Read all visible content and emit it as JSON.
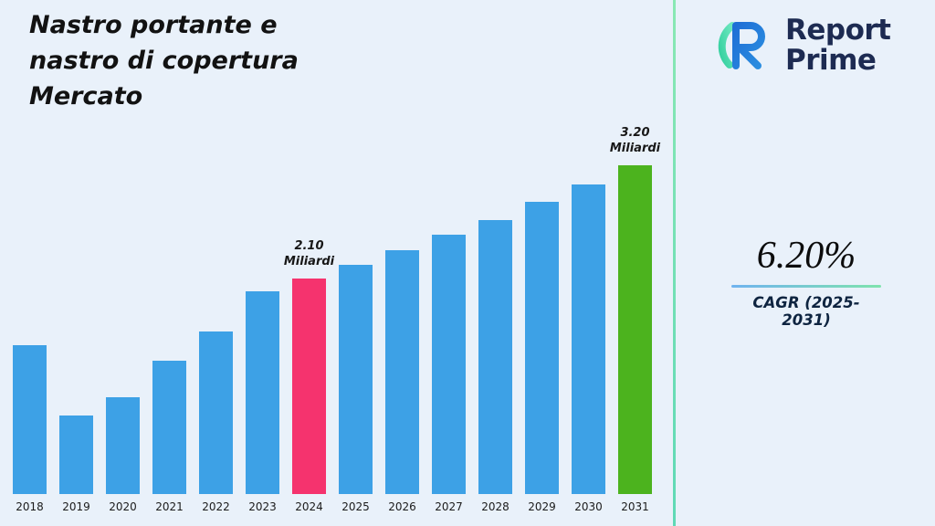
{
  "title": {
    "full": "Nastro portante e nastro di copertura Mercato",
    "lines": [
      "Nastro portante e",
      "nastro di copertura",
      "Mercato"
    ]
  },
  "brand": {
    "line1": "Report",
    "line2": "Prime",
    "logo": "report-prime-monogram",
    "colors": {
      "text": "#1d2b52",
      "blue": "#1f6fd6",
      "teal": "#3fd9a4"
    }
  },
  "stats": {
    "cagr_value": "6.20%",
    "cagr_label": "CAGR (2025-2031)"
  },
  "chart_data": {
    "type": "bar",
    "title": "Nastro portante e nastro di copertura Mercato",
    "unit": "Miliardi",
    "categories": [
      "2018",
      "2019",
      "2020",
      "2021",
      "2022",
      "2023",
      "2024",
      "2025",
      "2026",
      "2027",
      "2028",
      "2029",
      "2030",
      "2031"
    ],
    "values": [
      1.45,
      0.76,
      0.94,
      1.3,
      1.58,
      1.97,
      2.1,
      2.23,
      2.37,
      2.52,
      2.67,
      2.84,
      3.01,
      3.2
    ],
    "ylim": [
      0,
      3.4
    ],
    "grid": false,
    "legend": "none",
    "xlabel": "",
    "ylabel": "",
    "bar_color": "#3da1e6",
    "highlight_colors": {
      "2024": "#f5336e",
      "2031": "#4cb31e"
    },
    "annotations": [
      {
        "category": "2024",
        "lines": [
          "2.10",
          "Miliardi"
        ]
      },
      {
        "category": "2031",
        "lines": [
          "3.20",
          "Miliardi"
        ]
      }
    ]
  }
}
